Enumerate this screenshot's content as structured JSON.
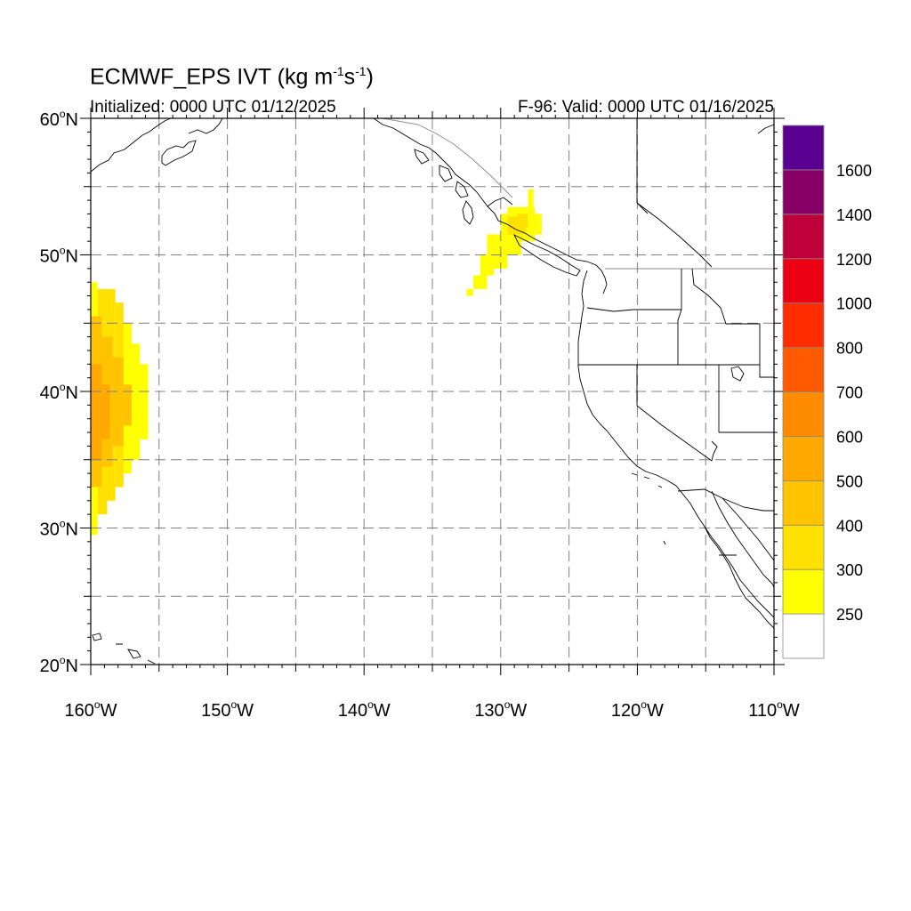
{
  "title": {
    "model": "ECMWF_EPS IVT (kg m",
    "exp1": "-1",
    "mid": "s",
    "exp2": "-1",
    "close": ")"
  },
  "subtitle_left": "Initialized: 0000 UTC 01/12/2025",
  "subtitle_right": "F-96: Valid: 0000 UTC 01/16/2025",
  "map": {
    "lon_range": [
      -160,
      -110
    ],
    "lat_range": [
      20,
      60
    ],
    "lat_labels": [
      {
        "lat": 60,
        "deg": "60",
        "hemi": "N"
      },
      {
        "lat": 50,
        "deg": "50",
        "hemi": "N"
      },
      {
        "lat": 40,
        "deg": "40",
        "hemi": "N"
      },
      {
        "lat": 30,
        "deg": "30",
        "hemi": "N"
      },
      {
        "lat": 20,
        "deg": "20",
        "hemi": "N"
      }
    ],
    "lon_labels": [
      {
        "lon": -160,
        "deg": "160",
        "hemi": "W"
      },
      {
        "lon": -150,
        "deg": "150",
        "hemi": "W"
      },
      {
        "lon": -140,
        "deg": "140",
        "hemi": "W"
      },
      {
        "lon": -130,
        "deg": "130",
        "hemi": "W"
      },
      {
        "lon": -120,
        "deg": "120",
        "hemi": "W"
      },
      {
        "lon": -110,
        "deg": "110",
        "hemi": "W"
      }
    ],
    "grid_lats": [
      25,
      30,
      35,
      40,
      45,
      50,
      55
    ],
    "grid_lons": [
      -155,
      -150,
      -145,
      -140,
      -135,
      -130,
      -125,
      -120,
      -115
    ],
    "coast_color": "#000000",
    "grid_color": "#808080"
  },
  "ivt_features": [
    {
      "name": "subtropical-moisture-plume",
      "lon_center": -158.5,
      "lat_center": 38.5,
      "peak_level": 500
    },
    {
      "name": "vancouver-island-plume",
      "lon_center": -129.5,
      "lat_center": 51.0,
      "peak_level": 300
    }
  ],
  "colorbar": {
    "colors": [
      "#ffffff",
      "#ffff00",
      "#ffe100",
      "#ffc300",
      "#ffa900",
      "#ff8b00",
      "#ff5a00",
      "#ff2c00",
      "#ec0014",
      "#be003b",
      "#870066",
      "#5a0090"
    ],
    "labels": [
      "250",
      "300",
      "400",
      "500",
      "600",
      "700",
      "800",
      "1000",
      "1200",
      "1400",
      "1600"
    ]
  }
}
